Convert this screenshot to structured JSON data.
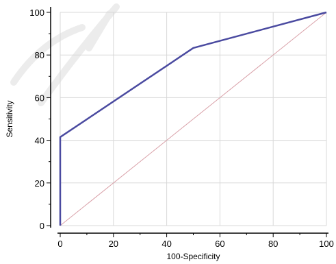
{
  "chart_data": {
    "type": "line",
    "title": "",
    "xlabel": "100-Specificity",
    "ylabel": "Sensitivity",
    "xlim": [
      0,
      100
    ],
    "ylim": [
      0,
      100
    ],
    "xticks": [
      0,
      20,
      40,
      60,
      80,
      100
    ],
    "yticks": [
      0,
      20,
      40,
      60,
      80,
      100
    ],
    "grid": true,
    "series": [
      {
        "color": "#4a4aa0",
        "x": [
          0,
          0,
          50,
          100
        ],
        "y": [
          0,
          41.5,
          83.3,
          100
        ]
      },
      {
        "color": "#d9a0a8",
        "x": [
          0,
          100
        ],
        "y": [
          0,
          100
        ]
      }
    ]
  }
}
